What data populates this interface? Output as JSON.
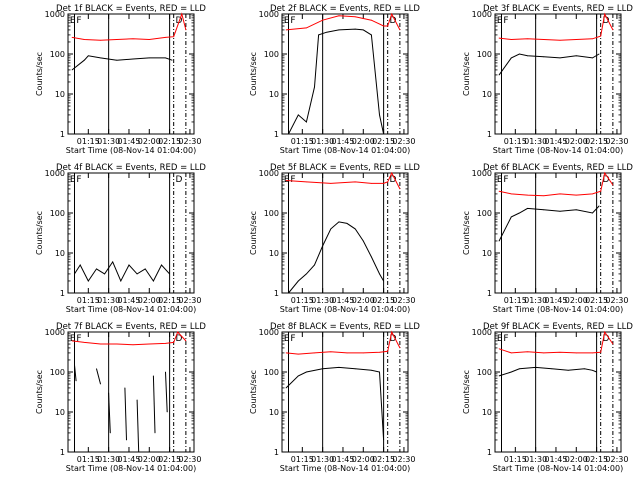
{
  "figure": {
    "xlabel": "Start Time (08-Nov-14 01:04:00)",
    "ylabel": "Counts/sec",
    "x_tick_labels": [
      "01:15",
      "01:30",
      "01:45",
      "02:00",
      "02:15",
      "02:30"
    ],
    "y_tick_labels": [
      "1",
      "10",
      "100",
      "1000"
    ],
    "flag_letters": [
      "E",
      "F",
      "D"
    ],
    "colors": {
      "events": "#000000",
      "lld": "#ff0000",
      "axes": "#000000"
    }
  },
  "chart_data": [
    {
      "type": "line",
      "title": "Det 1f BLACK = Events, RED = LLD",
      "ylim": [
        1,
        1000
      ],
      "yscale": "log",
      "series": [
        {
          "color": "#ff0000",
          "x": [
            1.05,
            1.2,
            1.4,
            1.6,
            1.8,
            2.0,
            2.2,
            2.3,
            2.33,
            2.4,
            2.45
          ],
          "values": [
            260,
            230,
            220,
            230,
            240,
            230,
            260,
            270,
            400,
            1000,
            400
          ]
        },
        {
          "color": "#000000",
          "x": [
            1.05,
            1.2,
            1.25,
            1.4,
            1.6,
            1.8,
            2.0,
            2.2,
            2.28
          ],
          "values": [
            40,
            70,
            90,
            80,
            70,
            75,
            80,
            80,
            70
          ]
        }
      ]
    },
    {
      "type": "line",
      "title": "Det 2f BLACK = Events, RED = LLD",
      "ylim": [
        1,
        1000
      ],
      "yscale": "log",
      "series": [
        {
          "color": "#ff0000",
          "x": [
            1.05,
            1.3,
            1.5,
            1.7,
            1.9,
            2.1,
            2.25,
            2.3,
            2.35,
            2.45
          ],
          "values": [
            400,
            450,
            700,
            900,
            850,
            700,
            500,
            500,
            1000,
            400
          ]
        },
        {
          "color": "#000000",
          "x": [
            1.08,
            1.2,
            1.3,
            1.4,
            1.45,
            1.55,
            1.7,
            1.9,
            2.0,
            2.1,
            2.2,
            2.25
          ],
          "values": [
            1,
            3,
            2,
            15,
            300,
            350,
            400,
            420,
            400,
            300,
            3,
            1
          ]
        }
      ]
    },
    {
      "type": "line",
      "title": "Det 3f BLACK = Events, RED = LLD",
      "ylim": [
        1,
        1000
      ],
      "yscale": "log",
      "series": [
        {
          "color": "#ff0000",
          "x": [
            1.05,
            1.2,
            1.4,
            1.6,
            1.8,
            2.0,
            2.2,
            2.3,
            2.35,
            2.45
          ],
          "values": [
            250,
            230,
            240,
            230,
            220,
            230,
            240,
            280,
            1000,
            400
          ]
        },
        {
          "color": "#000000",
          "x": [
            1.05,
            1.2,
            1.3,
            1.4,
            1.6,
            1.8,
            2.0,
            2.2,
            2.28
          ],
          "values": [
            30,
            80,
            100,
            90,
            85,
            80,
            90,
            80,
            100
          ]
        }
      ]
    },
    {
      "type": "line",
      "title": "Det 4f BLACK = Events, RED = LLD",
      "ylim": [
        1,
        1000
      ],
      "yscale": "log",
      "series": [
        {
          "color": "#000000",
          "x": [
            1.08,
            1.15,
            1.25,
            1.35,
            1.45,
            1.55,
            1.65,
            1.75,
            1.85,
            1.95,
            2.05,
            2.15,
            2.25
          ],
          "values": [
            3,
            5,
            2,
            4,
            3,
            6,
            2,
            5,
            3,
            4,
            2,
            5,
            3
          ]
        }
      ]
    },
    {
      "type": "line",
      "title": "Det 5f BLACK = Events, RED = LLD",
      "ylim": [
        1,
        1000
      ],
      "yscale": "log",
      "series": [
        {
          "color": "#ff0000",
          "x": [
            1.05,
            1.3,
            1.6,
            1.9,
            2.1,
            2.25,
            2.3,
            2.35,
            2.45
          ],
          "values": [
            650,
            600,
            550,
            600,
            550,
            550,
            600,
            1000,
            400
          ]
        },
        {
          "color": "#000000",
          "x": [
            1.08,
            1.2,
            1.3,
            1.4,
            1.5,
            1.6,
            1.7,
            1.8,
            1.9,
            2.0,
            2.1,
            2.2,
            2.25
          ],
          "values": [
            1,
            2,
            3,
            5,
            15,
            40,
            60,
            55,
            40,
            20,
            8,
            3,
            2
          ]
        }
      ]
    },
    {
      "type": "line",
      "title": "Det 6f BLACK = Events, RED = LLD",
      "ylim": [
        1,
        1000
      ],
      "yscale": "log",
      "series": [
        {
          "color": "#ff0000",
          "x": [
            1.05,
            1.2,
            1.4,
            1.6,
            1.8,
            2.0,
            2.2,
            2.3,
            2.35,
            2.45
          ],
          "values": [
            350,
            300,
            280,
            270,
            300,
            280,
            300,
            350,
            1000,
            500
          ]
        },
        {
          "color": "#000000",
          "x": [
            1.05,
            1.2,
            1.3,
            1.4,
            1.6,
            1.8,
            2.0,
            2.2,
            2.28
          ],
          "values": [
            20,
            80,
            100,
            130,
            120,
            110,
            120,
            100,
            150
          ]
        }
      ]
    },
    {
      "type": "line",
      "title": "Det 7f BLACK = Events, RED = LLD",
      "ylim": [
        1,
        1000
      ],
      "yscale": "log",
      "series": [
        {
          "color": "#ff0000",
          "x": [
            1.05,
            1.2,
            1.4,
            1.6,
            1.8,
            2.0,
            2.2,
            2.3,
            2.35,
            2.45
          ],
          "values": [
            600,
            550,
            500,
            500,
            480,
            500,
            520,
            550,
            1000,
            600
          ]
        },
        {
          "color": "#000000",
          "x": [
            1.08,
            1.1
          ],
          "values": [
            150,
            60
          ]
        },
        {
          "color": "#000000",
          "x": [
            1.35,
            1.4
          ],
          "values": [
            120,
            50
          ]
        },
        {
          "color": "#000000",
          "x": [
            1.5,
            1.52
          ],
          "values": [
            30,
            3
          ]
        },
        {
          "color": "#000000",
          "x": [
            1.7,
            1.72
          ],
          "values": [
            40,
            2
          ]
        },
        {
          "color": "#000000",
          "x": [
            1.85,
            1.87
          ],
          "values": [
            20,
            1
          ]
        },
        {
          "color": "#000000",
          "x": [
            2.05,
            2.07
          ],
          "values": [
            80,
            3
          ]
        },
        {
          "color": "#000000",
          "x": [
            2.2,
            2.22
          ],
          "values": [
            100,
            10
          ]
        }
      ]
    },
    {
      "type": "line",
      "title": "Det 8f BLACK = Events, RED = LLD",
      "ylim": [
        1,
        1000
      ],
      "yscale": "log",
      "series": [
        {
          "color": "#ff0000",
          "x": [
            1.05,
            1.2,
            1.4,
            1.6,
            1.8,
            2.0,
            2.2,
            2.3,
            2.35,
            2.45
          ],
          "values": [
            300,
            280,
            300,
            320,
            300,
            300,
            310,
            330,
            1000,
            400
          ]
        },
        {
          "color": "#000000",
          "x": [
            1.05,
            1.2,
            1.3,
            1.5,
            1.7,
            1.9,
            2.1,
            2.2,
            2.25
          ],
          "values": [
            40,
            80,
            100,
            120,
            130,
            120,
            110,
            100,
            2
          ]
        }
      ]
    },
    {
      "type": "line",
      "title": "Det 9f BLACK = Events, RED = LLD",
      "ylim": [
        1,
        1000
      ],
      "yscale": "log",
      "series": [
        {
          "color": "#ff0000",
          "x": [
            1.05,
            1.2,
            1.4,
            1.6,
            1.8,
            2.0,
            2.2,
            2.3,
            2.35,
            2.45
          ],
          "values": [
            380,
            300,
            320,
            300,
            310,
            300,
            300,
            310,
            1000,
            500
          ]
        },
        {
          "color": "#000000",
          "x": [
            1.05,
            1.2,
            1.3,
            1.5,
            1.7,
            1.9,
            2.1,
            2.2,
            2.25
          ],
          "values": [
            80,
            100,
            120,
            130,
            120,
            110,
            120,
            110,
            100
          ]
        }
      ]
    }
  ]
}
